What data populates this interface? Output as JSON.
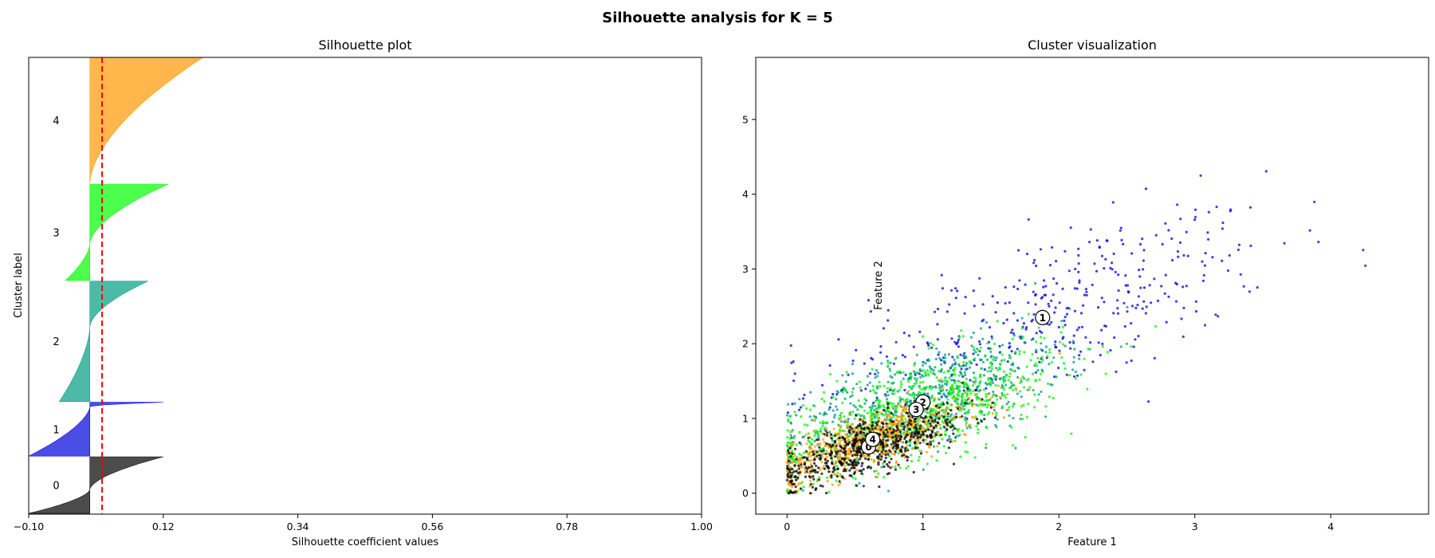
{
  "figure": {
    "suptitle": "Silhouette analysis for K = 5"
  },
  "chart_data": [
    {
      "type": "area",
      "title": "Silhouette plot",
      "xlabel": "Silhouette coefficient values",
      "ylabel": "Cluster label",
      "xlim": [
        -0.1,
        1.0
      ],
      "xticks": [
        "−0.10",
        "0.12",
        "0.34",
        "0.56",
        "0.78",
        "1.00"
      ],
      "xtick_values": [
        -0.1,
        0.12,
        0.34,
        0.56,
        0.78,
        1.0
      ],
      "average_silhouette": 0.02,
      "average_line_color": "#ff0000",
      "ylim": [
        0,
        6450
      ],
      "clusters": [
        {
          "label": "0",
          "color": "#000000",
          "y_lower": 10,
          "size": 800,
          "min": -0.1,
          "max": 0.12,
          "neg_frac": 0.42
        },
        {
          "label": "1",
          "color": "#0000dd",
          "y_lower": 820,
          "size": 760,
          "min": -0.1,
          "max": 0.12,
          "neg_frac": 0.92
        },
        {
          "label": "2",
          "color": "#009c82",
          "y_lower": 1590,
          "size": 1700,
          "min": -0.05,
          "max": 0.095,
          "neg_frac": 0.62
        },
        {
          "label": "3",
          "color": "#00ff00",
          "y_lower": 3300,
          "size": 1360,
          "min": -0.04,
          "max": 0.128,
          "neg_frac": 0.38
        },
        {
          "label": "4",
          "color": "#ff9900",
          "y_lower": 4670,
          "size": 1780,
          "min": 0.0,
          "max": 0.185,
          "neg_frac": 0.0
        }
      ]
    },
    {
      "type": "scatter",
      "title": "Cluster visualization",
      "xlabel": "Feature 1",
      "ylabel": "Feature 2",
      "xlim": [
        -0.23,
        4.72
      ],
      "ylim": [
        -0.28,
        5.83
      ],
      "xticks": [
        "0",
        "1",
        "2",
        "3",
        "4"
      ],
      "yticks": [
        "0",
        "1",
        "2",
        "3",
        "4",
        "5"
      ],
      "centers": [
        {
          "label": "0",
          "x": 0.6,
          "y": 0.62
        },
        {
          "label": "1",
          "x": 1.88,
          "y": 2.35
        },
        {
          "label": "2",
          "x": 1.0,
          "y": 1.22
        },
        {
          "label": "3",
          "x": 0.95,
          "y": 1.12
        },
        {
          "label": "4",
          "x": 0.63,
          "y": 0.72
        }
      ],
      "series": [
        {
          "label": "0",
          "color": "#000000"
        },
        {
          "label": "1",
          "color": "#0000dd"
        },
        {
          "label": "2",
          "color": "#009c82"
        },
        {
          "label": "3",
          "color": "#00ff00"
        },
        {
          "label": "4",
          "color": "#ff9900"
        }
      ],
      "point_count_per_cluster": [
        620,
        430,
        700,
        750,
        700
      ]
    }
  ]
}
